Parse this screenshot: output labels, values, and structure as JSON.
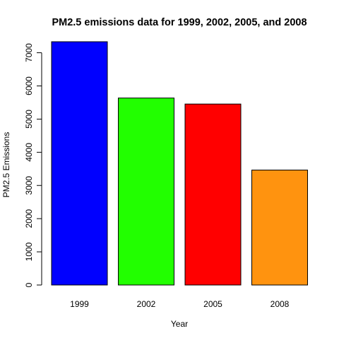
{
  "chart_data": {
    "type": "bar",
    "title": "PM2.5 emissions data for 1999, 2002, 2005, and 2008",
    "xlabel": "Year",
    "ylabel": "PM2.5 Emissions",
    "categories": [
      "1999",
      "2002",
      "2005",
      "2008"
    ],
    "values": [
      7332,
      5636,
      5454,
      3465
    ],
    "colors": [
      "#0000ff",
      "#22ff00",
      "#ff0000",
      "#ff930f"
    ],
    "ylim": [
      0,
      7332
    ],
    "yticks": [
      0,
      1000,
      2000,
      3000,
      4000,
      5000,
      6000,
      7000
    ],
    "grid": false,
    "legend": "none"
  }
}
